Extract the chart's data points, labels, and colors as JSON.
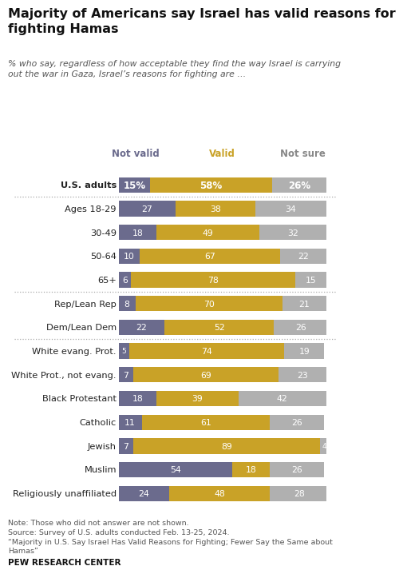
{
  "title": "Majority of Americans say Israel has valid reasons for\nfighting Hamas",
  "subtitle": "% who say, regardless of how acceptable they find the way Israel is carrying\nout the war in Gaza, Israel’s reasons for fighting are …",
  "categories": [
    "U.S. adults",
    "Ages 18-29",
    "30-49",
    "50-64",
    "65+",
    "Rep/Lean Rep",
    "Dem/Lean Dem",
    "White evang. Prot.",
    "White Prot., not evang.",
    "Black Protestant",
    "Catholic",
    "Jewish",
    "Muslim",
    "Religiously unaffiliated"
  ],
  "not_valid": [
    15,
    27,
    18,
    10,
    6,
    8,
    22,
    5,
    7,
    18,
    11,
    7,
    54,
    24
  ],
  "valid": [
    58,
    38,
    49,
    67,
    78,
    70,
    52,
    74,
    69,
    39,
    61,
    89,
    18,
    48
  ],
  "not_sure": [
    26,
    34,
    32,
    22,
    15,
    21,
    26,
    19,
    23,
    42,
    26,
    4,
    26,
    28
  ],
  "color_not_valid": "#6b6b8d",
  "color_valid": "#c9a227",
  "color_not_sure": "#b0b0b0",
  "color_header_not_valid": "#6b6b8d",
  "color_header_valid": "#c9a227",
  "color_header_not_sure": "#888888",
  "note1": "Note: Those who did not answer are not shown.",
  "note2": "Source: Survey of U.S. adults conducted Feb. 13-25, 2024.",
  "note3": "“Majority in U.S. Say Israel Has Valid Reasons for Fighting; Fewer Say the Same about\nHamas”",
  "note4": "PEW RESEARCH CENTER",
  "separator_after_idx": [
    0,
    4,
    6
  ],
  "header_labels": [
    "Not valid",
    "Valid",
    "Not sure"
  ],
  "background_color": "#ffffff"
}
